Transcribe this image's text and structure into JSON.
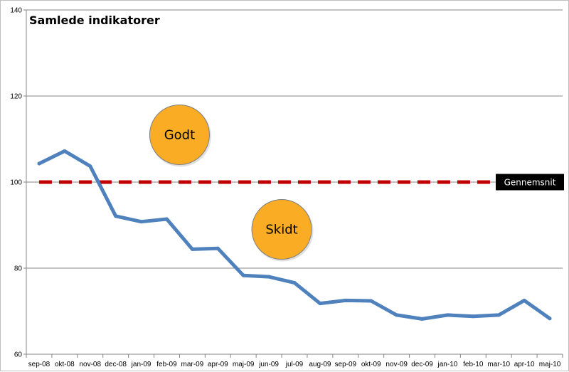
{
  "chart_data": {
    "type": "line",
    "title": "Samlede indikatorer",
    "xlabel": "",
    "ylabel": "",
    "ylim": [
      60,
      140
    ],
    "yticks": [
      60,
      80,
      100,
      120,
      140
    ],
    "grid": true,
    "categories": [
      "sep-08",
      "okt-08",
      "nov-08",
      "dec-08",
      "jan-09",
      "feb-09",
      "mar-09",
      "apr-09",
      "maj-09",
      "jun-09",
      "jul-09",
      "aug-09",
      "sep-09",
      "okt-09",
      "nov-09",
      "dec-09",
      "jan-10",
      "feb-10",
      "mar-10",
      "apr-10",
      "maj-10"
    ],
    "series": [
      {
        "values": [
          104.3,
          107.2,
          103.7,
          92.1,
          90.8,
          91.4,
          84.4,
          84.6,
          78.3,
          78.0,
          76.6,
          71.8,
          72.5,
          72.4,
          69.1,
          68.2,
          69.1,
          68.8,
          69.1,
          72.5,
          68.3
        ],
        "color": "#4f81bd"
      }
    ],
    "reference_line": {
      "label": "Gennemsnit",
      "value": 100,
      "color": "#c00000"
    },
    "annotations": [
      {
        "text": "Godt",
        "category": "feb-09",
        "y": 111
      },
      {
        "text": "Skidt",
        "category": "jun-09",
        "y": 89
      }
    ],
    "bubble_color": "#f9ac24"
  }
}
